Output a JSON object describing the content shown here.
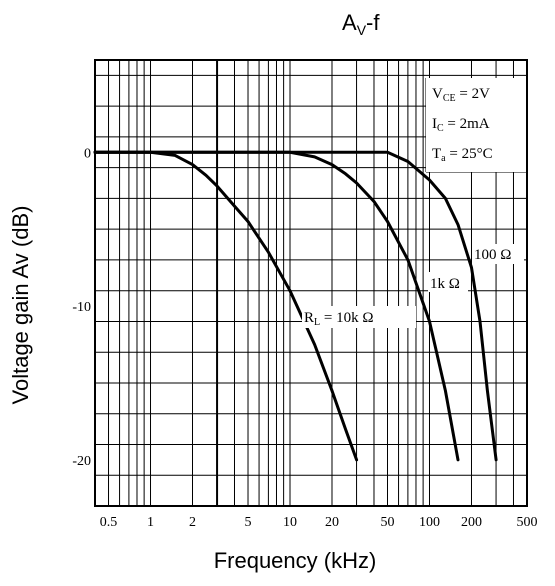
{
  "chart_data": {
    "type": "line",
    "title": {
      "main": "A",
      "sub": "V",
      "rest": "-f"
    },
    "xlabel": "Frequency (kHz)",
    "ylabel": "Voltage gain Av (dB)",
    "x_scale": "log",
    "xlim": [
      0.4,
      500
    ],
    "ylim": [
      -23,
      6
    ],
    "x_ticks": [
      0.5,
      1,
      2,
      5,
      10,
      20,
      50,
      100,
      200,
      500
    ],
    "x_tick_labels": [
      "0.5",
      "1",
      "2",
      "5",
      "10",
      "20",
      "50",
      "100",
      "200",
      "500"
    ],
    "y_ticks": [
      0,
      -10,
      -20
    ],
    "y_tick_labels": [
      "0",
      "-10",
      "-20"
    ],
    "grid": true,
    "conditions": {
      "vce": {
        "main": "V",
        "sub": "CE",
        "rest": " = 2V"
      },
      "ic": {
        "main": "I",
        "sub": "C",
        "rest": " = 2mA"
      },
      "ta": {
        "main": "T",
        "sub": "a",
        "rest": " = 25°C"
      }
    },
    "series": [
      {
        "name": "R_L = 10kΩ",
        "label": {
          "main": "R",
          "sub": "L",
          "rest": " =  10k Ω"
        },
        "x": [
          0.4,
          1,
          1.5,
          2,
          2.5,
          3,
          4,
          5,
          7,
          10,
          15,
          20,
          25,
          30
        ],
        "y": [
          0,
          0,
          -0.2,
          -0.8,
          -1.5,
          -2.2,
          -3.5,
          -4.5,
          -6.5,
          -9.0,
          -12.5,
          -15.5,
          -18,
          -20
        ]
      },
      {
        "name": "1kΩ",
        "label": {
          "main": "1k Ω",
          "sub": "",
          "rest": ""
        },
        "x": [
          0.4,
          10,
          15,
          20,
          25,
          30,
          40,
          50,
          70,
          100,
          130,
          160
        ],
        "y": [
          0,
          0,
          -0.3,
          -0.8,
          -1.4,
          -2.0,
          -3.2,
          -4.5,
          -7.0,
          -11.0,
          -15.5,
          -20
        ]
      },
      {
        "name": "100Ω",
        "label": {
          "main": "100 Ω",
          "sub": "",
          "rest": ""
        },
        "x": [
          0.4,
          50,
          70,
          100,
          130,
          160,
          200,
          230,
          260,
          300
        ],
        "y": [
          0,
          0,
          -0.6,
          -1.8,
          -3.0,
          -4.7,
          -7.5,
          -11,
          -15.5,
          -20
        ]
      }
    ]
  }
}
